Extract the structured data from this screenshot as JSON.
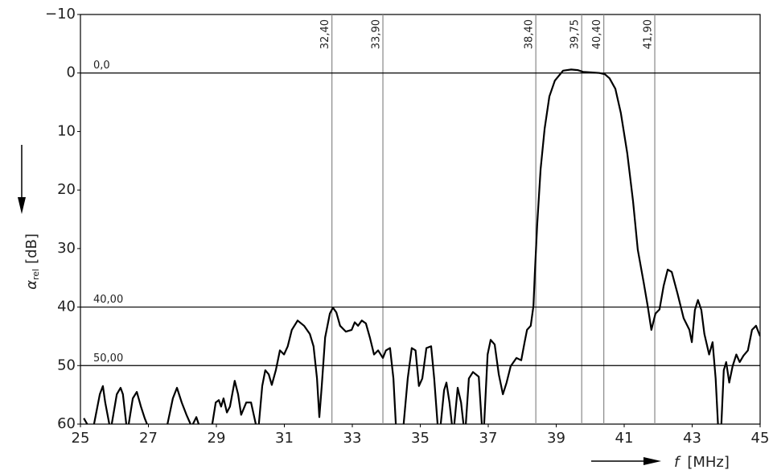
{
  "chart_data": {
    "type": "line",
    "xlabel": "f",
    "xlabel_unit": "[MHz]",
    "ylabel_symbol": "α",
    "ylabel_subscript": "rel",
    "ylabel_unit": "[dB]",
    "xlim": [
      25,
      45
    ],
    "xticks": [
      25,
      27,
      29,
      31,
      33,
      35,
      37,
      39,
      41,
      43,
      45
    ],
    "ylim": [
      -10,
      60
    ],
    "yticks": [
      {
        "value": -10,
        "label": "−10"
      },
      0,
      10,
      20,
      30,
      40,
      50,
      60
    ],
    "y_inverted": true,
    "vlines": [
      {
        "value": 32.4,
        "label": "32,40"
      },
      {
        "value": 33.9,
        "label": "33,90"
      },
      {
        "value": 38.4,
        "label": "38,40"
      },
      {
        "value": 39.75,
        "label": "39,75"
      },
      {
        "value": 40.4,
        "label": "40,40"
      },
      {
        "value": 41.9,
        "label": "41,90"
      }
    ],
    "hlines": [
      {
        "value": 0,
        "label": "0,0"
      },
      {
        "value": 40,
        "label": "40,00"
      },
      {
        "value": 50,
        "label": "50,00"
      }
    ],
    "series": [
      {
        "color": "#000000",
        "x": [
          25.1,
          25.2,
          25.3,
          25.4,
          25.57,
          25.66,
          25.73,
          25.85,
          25.88,
          25.92,
          26.07,
          26.18,
          26.25,
          26.35,
          26.38,
          26.42,
          26.54,
          26.66,
          26.78,
          26.89,
          26.96,
          27.2,
          27.56,
          27.72,
          27.84,
          27.98,
          28.12,
          28.24,
          28.27,
          28.31,
          28.41,
          28.48,
          28.7,
          28.88,
          28.98,
          29.07,
          29.14,
          29.21,
          29.31,
          29.4,
          29.54,
          29.64,
          29.73,
          29.88,
          30.02,
          30.16,
          30.2,
          30.25,
          30.35,
          30.44,
          30.54,
          30.63,
          30.75,
          30.87,
          30.99,
          31.1,
          31.22,
          31.39,
          31.58,
          31.75,
          31.86,
          31.96,
          32.03,
          32.1,
          32.2,
          32.34,
          32.43,
          32.53,
          32.64,
          32.81,
          32.98,
          33.07,
          33.17,
          33.28,
          33.4,
          33.52,
          33.64,
          33.76,
          33.9,
          33.99,
          34.11,
          34.21,
          34.28,
          34.4,
          34.51,
          34.63,
          34.75,
          34.86,
          34.96,
          35.06,
          35.18,
          35.32,
          35.41,
          35.51,
          35.55,
          35.6,
          35.7,
          35.77,
          35.86,
          35.93,
          35.96,
          36.0,
          36.1,
          36.2,
          36.27,
          36.3,
          36.34,
          36.43,
          36.55,
          36.72,
          36.81,
          36.85,
          36.88,
          36.98,
          37.07,
          37.19,
          37.31,
          37.43,
          37.54,
          37.66,
          37.83,
          37.97,
          38.07,
          38.14,
          38.25,
          38.33,
          38.37,
          38.44,
          38.54,
          38.66,
          38.8,
          38.96,
          39.2,
          39.44,
          39.63,
          39.79,
          40.03,
          40.27,
          40.43,
          40.57,
          40.74,
          40.9,
          41.09,
          41.26,
          41.4,
          41.57,
          41.69,
          41.8,
          41.92,
          42.04,
          42.16,
          42.28,
          42.4,
          42.57,
          42.75,
          42.92,
          42.99,
          43.08,
          43.17,
          43.27,
          43.36,
          43.5,
          43.6,
          43.69,
          43.76,
          43.8,
          43.86,
          43.93,
          44.0,
          44.09,
          44.19,
          44.3,
          44.4,
          44.51,
          44.64,
          44.76,
          44.88,
          45.0
        ],
        "values": [
          59,
          60,
          null,
          60,
          54.9,
          53.5,
          56.3,
          60,
          null,
          60,
          54.9,
          53.8,
          54.9,
          60,
          null,
          60,
          55.6,
          54.5,
          57,
          59,
          60,
          null,
          60,
          55.6,
          53.8,
          56.3,
          58.4,
          60,
          null,
          60,
          58.8,
          60,
          null,
          60,
          56.3,
          55.9,
          57,
          55.6,
          58,
          57,
          52.6,
          54.9,
          58.4,
          56.3,
          56.3,
          60,
          null,
          60,
          53.5,
          50.8,
          51.5,
          53.3,
          50.8,
          47.4,
          48.1,
          46.7,
          43.9,
          42.3,
          43.2,
          44.6,
          46.7,
          52.2,
          58.8,
          53.5,
          45.2,
          41.1,
          40.1,
          40.9,
          43.2,
          44.2,
          43.9,
          42.6,
          43.2,
          42.3,
          42.8,
          45.3,
          48.1,
          47.4,
          48.7,
          47.4,
          47,
          52.2,
          60,
          null,
          60,
          52.2,
          47,
          47.4,
          53.5,
          52.2,
          47,
          46.7,
          52.2,
          60,
          null,
          60,
          54.2,
          52.9,
          56.3,
          60,
          null,
          60,
          53.8,
          56.3,
          60,
          null,
          60,
          52.2,
          51.1,
          51.9,
          60,
          null,
          60,
          48.1,
          45.6,
          46.4,
          51.5,
          54.9,
          52.9,
          50.1,
          48.7,
          49.1,
          46,
          43.9,
          43.2,
          39.8,
          34.3,
          26,
          16.4,
          9.5,
          4,
          1.3,
          -0.4,
          -0.6,
          -0.5,
          -0.2,
          -0.1,
          0,
          0.2,
          0.9,
          2.7,
          6.8,
          13.7,
          21.9,
          30.2,
          35.7,
          39.8,
          43.9,
          41.1,
          40.4,
          36.4,
          33.6,
          34,
          37.7,
          41.9,
          43.9,
          46,
          40.5,
          38.8,
          40.5,
          44.6,
          48.1,
          46,
          52.2,
          60,
          null,
          60,
          50.8,
          49.4,
          52.9,
          50.1,
          48.1,
          49.4,
          48.3,
          47.4,
          43.9,
          43.2,
          45
        ]
      }
    ]
  }
}
